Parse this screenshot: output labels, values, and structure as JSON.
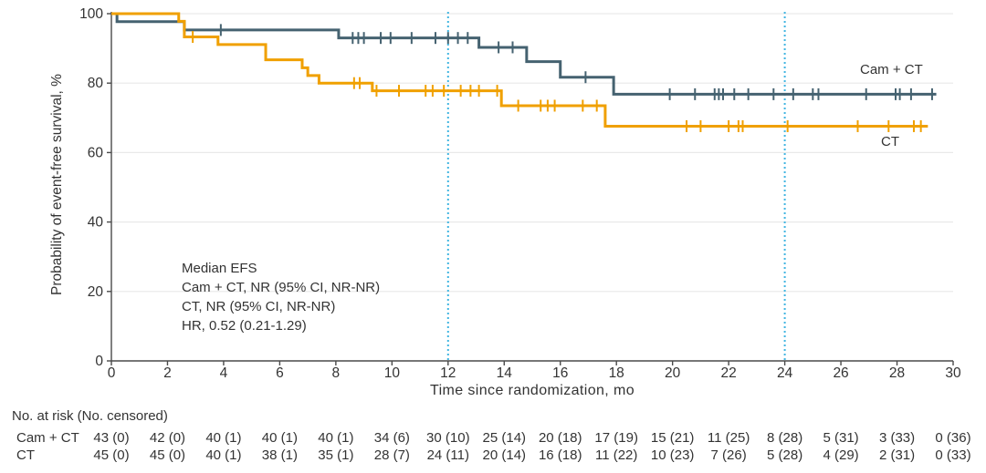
{
  "chart_data": {
    "type": "line",
    "subtype": "kaplan-meier-step",
    "x_label": "Time since randomization, mo",
    "y_label": "Probability of event-free survival, %",
    "xlim": [
      0,
      30
    ],
    "ylim": [
      0,
      100
    ],
    "x_ticks": [
      0,
      2,
      4,
      6,
      8,
      10,
      12,
      14,
      16,
      18,
      20,
      22,
      24,
      26,
      28,
      30
    ],
    "y_ticks": [
      0,
      20,
      40,
      60,
      80,
      100
    ],
    "grid": "horizontal",
    "reference_lines_x": [
      12,
      24
    ],
    "reference_line_color": "#41B5E1",
    "grid_color": "#E9E9E9",
    "axis_color": "#4A4A4A",
    "annotation": [
      "Median EFS",
      "Cam + CT, NR (95% CI, NR-NR)",
      "CT, NR (95% CI, NR-NR)",
      "HR, 0.52 (0.21-1.29)"
    ],
    "series": [
      {
        "name": "Cam + CT",
        "color": "#456270",
        "steps": [
          [
            0,
            100
          ],
          [
            0.2,
            97.7
          ],
          [
            2.6,
            95.3
          ],
          [
            8.1,
            93.0
          ],
          [
            13.1,
            90.3
          ],
          [
            14.8,
            86.2
          ],
          [
            16.0,
            81.7
          ],
          [
            17.9,
            76.8
          ]
        ],
        "end_time": 29.4,
        "censors": [
          [
            3.9,
            95.3
          ],
          [
            8.6,
            93.0
          ],
          [
            8.8,
            93.0
          ],
          [
            9.0,
            93.0
          ],
          [
            9.6,
            93.0
          ],
          [
            9.95,
            93.0
          ],
          [
            10.7,
            93.0
          ],
          [
            11.55,
            93.0
          ],
          [
            12.0,
            93.0
          ],
          [
            12.35,
            93.0
          ],
          [
            12.7,
            93.0
          ],
          [
            13.8,
            90.3
          ],
          [
            14.3,
            90.3
          ],
          [
            16.9,
            81.7
          ],
          [
            19.9,
            76.8
          ],
          [
            20.8,
            76.8
          ],
          [
            21.5,
            76.8
          ],
          [
            21.65,
            76.8
          ],
          [
            21.8,
            76.8
          ],
          [
            22.2,
            76.8
          ],
          [
            22.7,
            76.8
          ],
          [
            23.6,
            76.8
          ],
          [
            24.3,
            76.8
          ],
          [
            25.0,
            76.8
          ],
          [
            25.2,
            76.8
          ],
          [
            26.9,
            76.8
          ],
          [
            27.95,
            76.8
          ],
          [
            28.1,
            76.8
          ],
          [
            28.5,
            76.8
          ],
          [
            29.25,
            76.8
          ]
        ]
      },
      {
        "name": "CT",
        "color": "#F0A000",
        "steps": [
          [
            0,
            100
          ],
          [
            2.4,
            97.8
          ],
          [
            2.6,
            93.3
          ],
          [
            3.8,
            91.1
          ],
          [
            5.5,
            86.7
          ],
          [
            6.8,
            84.4
          ],
          [
            7.0,
            82.2
          ],
          [
            7.4,
            80.0
          ],
          [
            9.3,
            77.8
          ],
          [
            13.9,
            73.5
          ],
          [
            17.6,
            67.6
          ]
        ],
        "end_time": 29.1,
        "censors": [
          [
            2.9,
            93.3
          ],
          [
            8.65,
            80.0
          ],
          [
            8.85,
            80.0
          ],
          [
            9.45,
            77.8
          ],
          [
            10.25,
            77.8
          ],
          [
            11.2,
            77.8
          ],
          [
            11.45,
            77.8
          ],
          [
            11.85,
            77.8
          ],
          [
            12.45,
            77.8
          ],
          [
            12.8,
            77.8
          ],
          [
            13.1,
            77.8
          ],
          [
            13.75,
            77.8
          ],
          [
            14.5,
            73.5
          ],
          [
            15.3,
            73.5
          ],
          [
            15.55,
            73.5
          ],
          [
            15.8,
            73.5
          ],
          [
            16.8,
            73.5
          ],
          [
            17.3,
            73.5
          ],
          [
            20.5,
            67.6
          ],
          [
            21.0,
            67.6
          ],
          [
            22.0,
            67.6
          ],
          [
            22.35,
            67.6
          ],
          [
            22.5,
            67.6
          ],
          [
            24.1,
            67.6
          ],
          [
            26.6,
            67.6
          ],
          [
            27.7,
            67.6
          ],
          [
            28.6,
            67.6
          ],
          [
            28.85,
            67.6
          ]
        ]
      }
    ],
    "risk_table": {
      "header": "No. at risk (No. censored)",
      "rows": [
        {
          "name": "Cam + CT",
          "values": [
            "43 (0)",
            "42 (0)",
            "40 (1)",
            "40 (1)",
            "40 (1)",
            "34 (6)",
            "30 (10)",
            "25 (14)",
            "20 (18)",
            "17 (19)",
            "15 (21)",
            "11 (25)",
            "8 (28)",
            "5 (31)",
            "3 (33)",
            "0 (36)"
          ]
        },
        {
          "name": "CT",
          "values": [
            "45 (0)",
            "45 (0)",
            "40 (1)",
            "38 (1)",
            "35 (1)",
            "28 (7)",
            "24 (11)",
            "20 (14)",
            "16 (18)",
            "11 (22)",
            "10 (23)",
            "7 (26)",
            "5 (28)",
            "4 (29)",
            "2 (31)",
            "0 (33)"
          ]
        }
      ]
    }
  }
}
